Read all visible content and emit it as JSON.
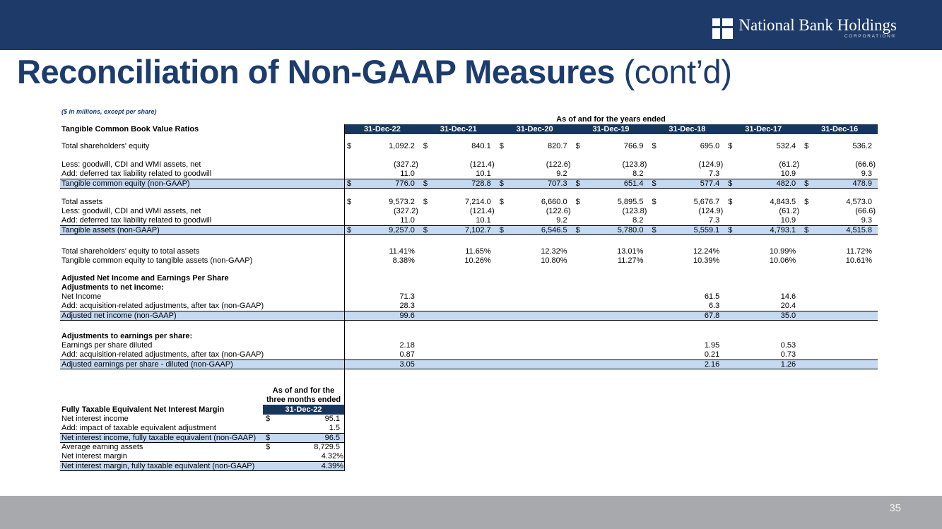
{
  "slide": {
    "banner": {
      "logo_name": "National Bank Holdings",
      "logo_subtitle": "CORPORATION®"
    },
    "title": {
      "main": "Reconciliation of Non-GAAP Measures",
      "suffix": " (cont’d)"
    },
    "note": "($ in millions, except per share)",
    "footer": {
      "page_number": "35"
    }
  },
  "main_table": {
    "period_header": "As of and for the years ended",
    "section_label": "Tangible Common Book Value Ratios",
    "columns": [
      "31-Dec-22",
      "31-Dec-21",
      "31-Dec-20",
      "31-Dec-19",
      "31-Dec-18",
      "31-Dec-17",
      "31-Dec-16"
    ],
    "rows": [
      {
        "style": "spacer",
        "h": 11
      },
      {
        "label": "Total shareholders' equity",
        "dollar": true,
        "values": [
          "1,092.2",
          "840.1",
          "820.7",
          "766.9",
          "695.0",
          "532.4",
          "536.2"
        ]
      },
      {
        "style": "spacer",
        "h": 13
      },
      {
        "label": "Less: goodwill, CDI and WMI assets, net",
        "values": [
          "(327.2)",
          "(121.4)",
          "(122.6)",
          "(123.8)",
          "(124.9)",
          "(61.2)",
          "(66.6)"
        ]
      },
      {
        "label": "Add: deferred tax liability related to goodwill",
        "values": [
          "11.0",
          "10.1",
          "9.2",
          "8.2",
          "7.3",
          "10.9",
          "9.3"
        ]
      },
      {
        "label": "Tangible common equity (non-GAAP)",
        "style": "total",
        "dollar": true,
        "values": [
          "776.0",
          "728.8",
          "707.3",
          "651.4",
          "577.4",
          "482.0",
          "478.9"
        ]
      },
      {
        "style": "spacer",
        "h": 13
      },
      {
        "label": "Total assets",
        "dollar": true,
        "values": [
          "9,573.2",
          "7,214.0",
          "6,660.0",
          "5,895.5",
          "5,676.7",
          "4,843.5",
          "4,573.0"
        ]
      },
      {
        "label": "Less: goodwill, CDI and WMI assets, net",
        "values": [
          "(327.2)",
          "(121.4)",
          "(122.6)",
          "(123.8)",
          "(124.9)",
          "(61.2)",
          "(66.6)"
        ]
      },
      {
        "label": "Add: deferred tax liability related to goodwill",
        "values": [
          "11.0",
          "10.1",
          "9.2",
          "8.2",
          "7.3",
          "10.9",
          "9.3"
        ]
      },
      {
        "label": "Tangible assets (non-GAAP)",
        "style": "total",
        "dollar": true,
        "values": [
          "9,257.0",
          "7,102.7",
          "6,546.5",
          "5,780.0",
          "5,559.1",
          "4,793.1",
          "4,515.8"
        ]
      },
      {
        "style": "spacer",
        "h": 17
      },
      {
        "label": "Total shareholders' equity to total assets",
        "values": [
          "11.41%",
          "11.65%",
          "12.32%",
          "13.01%",
          "12.24%",
          "10.99%",
          "11.72%"
        ]
      },
      {
        "label": "Tangible common equity to tangible assets (non-GAAP)",
        "values": [
          "8.38%",
          "10.26%",
          "10.80%",
          "11.27%",
          "10.39%",
          "10.06%",
          "10.61%"
        ]
      },
      {
        "style": "spacer",
        "h": 12
      },
      {
        "label": "Adjusted Net Income and Earnings Per Share",
        "style": "bold",
        "values": []
      },
      {
        "label": "Adjustments to net income:",
        "style": "bold",
        "values": []
      },
      {
        "label": "Net Income",
        "values": [
          "71.3",
          "",
          "",
          "",
          "61.5",
          "14.6",
          ""
        ]
      },
      {
        "label": "Add: acquisition-related adjustments, after tax (non-GAAP)",
        "values": [
          "28.3",
          "",
          "",
          "",
          "6.3",
          "20.4",
          ""
        ]
      },
      {
        "label": "Adjusted net income (non-GAAP)",
        "style": "total",
        "values": [
          "99.6",
          "",
          "",
          "",
          "67.8",
          "35.0",
          ""
        ]
      },
      {
        "style": "spacer",
        "h": 16
      },
      {
        "label": "Adjustments to earnings per share:",
        "style": "bold",
        "values": []
      },
      {
        "label": "Earnings per share diluted",
        "values": [
          "2.18",
          "",
          "",
          "",
          "1.95",
          "0.53",
          ""
        ]
      },
      {
        "label": "Add: acquisition-related adjustments, after tax (non-GAAP)",
        "values": [
          "0.87",
          "",
          "",
          "",
          "0.21",
          "0.73",
          ""
        ]
      },
      {
        "label": "Adjusted earnings per share - diluted (non-GAAP)",
        "style": "total",
        "values": [
          "3.05",
          "",
          "",
          "",
          "2.16",
          "1.26",
          ""
        ]
      }
    ]
  },
  "nim_table": {
    "period_header_line1": "As of and for the",
    "period_header_line2": "three months ended",
    "column": "31-Dec-22",
    "section_label": "Fully Taxable Equivalent Net Interest Margin",
    "rows": [
      {
        "label": "Net interest income",
        "dollar": true,
        "value": "95.1"
      },
      {
        "label": "Add: impact of taxable equivalent adjustment",
        "value": "1.5"
      },
      {
        "label": "Net interest income, fully taxable equivalent (non-GAAP)",
        "style": "total",
        "dollar": true,
        "value": "96.5"
      },
      {
        "label": "Average earning assets",
        "dollar": true,
        "value": "8,729.5"
      },
      {
        "label": "Net interest margin",
        "value": "4.32%"
      },
      {
        "label": "Net interest margin, fully taxable equivalent (non-GAAP)",
        "style": "total",
        "value": "4.39%"
      }
    ]
  },
  "colors": {
    "banner_navy": "#1d3a68",
    "table_header_navy": "#17365d",
    "title_navy": "#1d3c6e",
    "highlight_blue": "#c5d9f1",
    "footer_gray": "#a7a9ac"
  }
}
